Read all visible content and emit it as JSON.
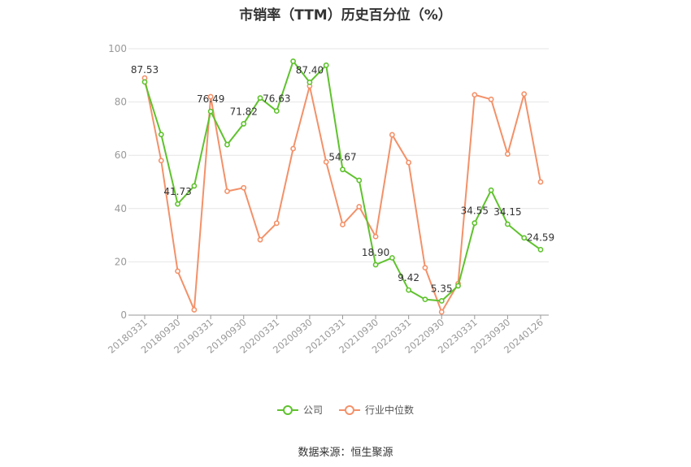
{
  "chart_data": {
    "type": "line",
    "title": "市销率（TTM）历史百分位（%）",
    "ylim": [
      0,
      100
    ],
    "yticks": [
      0,
      20,
      40,
      60,
      80,
      100
    ],
    "x": [
      "20180331",
      "20180630",
      "20180930",
      "20181231",
      "20190331",
      "20190630",
      "20190930",
      "20191231",
      "20200331",
      "20200630",
      "20200930",
      "20201231",
      "20210331",
      "20210630",
      "20210930",
      "20211231",
      "20220331",
      "20220630",
      "20220930",
      "20221231",
      "20230331",
      "20230630",
      "20230930",
      "20231231",
      "20240126"
    ],
    "xtick_labels": [
      "20180331",
      "20180930",
      "20190331",
      "20190930",
      "20200331",
      "20200930",
      "20210331",
      "20210930",
      "20220331",
      "20220930",
      "20230331",
      "20230930",
      "20240126"
    ],
    "series": [
      {
        "name": "公司",
        "color": "#5fc22d",
        "values": [
          87.53,
          67.8,
          41.73,
          48.5,
          76.49,
          64.0,
          71.82,
          81.5,
          76.63,
          95.3,
          87.4,
          93.8,
          54.67,
          50.6,
          18.9,
          21.5,
          9.42,
          5.9,
          5.35,
          11.0,
          34.55,
          46.9,
          34.15,
          29.0,
          24.59
        ],
        "labeled_points": [
          {
            "index": 0,
            "label": "87.53"
          },
          {
            "index": 2,
            "label": "41.73"
          },
          {
            "index": 4,
            "label": "76.49"
          },
          {
            "index": 6,
            "label": "71.82"
          },
          {
            "index": 8,
            "label": "76.63"
          },
          {
            "index": 10,
            "label": "87.40"
          },
          {
            "index": 12,
            "label": "54.67"
          },
          {
            "index": 14,
            "label": "18.90"
          },
          {
            "index": 16,
            "label": "9.42"
          },
          {
            "index": 18,
            "label": "5.35"
          },
          {
            "index": 20,
            "label": "34.55"
          },
          {
            "index": 22,
            "label": "34.15"
          },
          {
            "index": 24,
            "label": "24.59"
          }
        ]
      },
      {
        "name": "行业中位数",
        "color": "#f39169",
        "values": [
          89.0,
          58.0,
          16.5,
          2.0,
          82.0,
          46.5,
          47.8,
          28.3,
          34.5,
          62.5,
          86.0,
          57.5,
          34.0,
          40.7,
          29.5,
          67.7,
          57.3,
          17.8,
          1.2,
          11.8,
          82.7,
          81.0,
          60.5,
          83.0,
          50.0
        ]
      }
    ]
  },
  "source_text": "数据来源：恒生聚源"
}
